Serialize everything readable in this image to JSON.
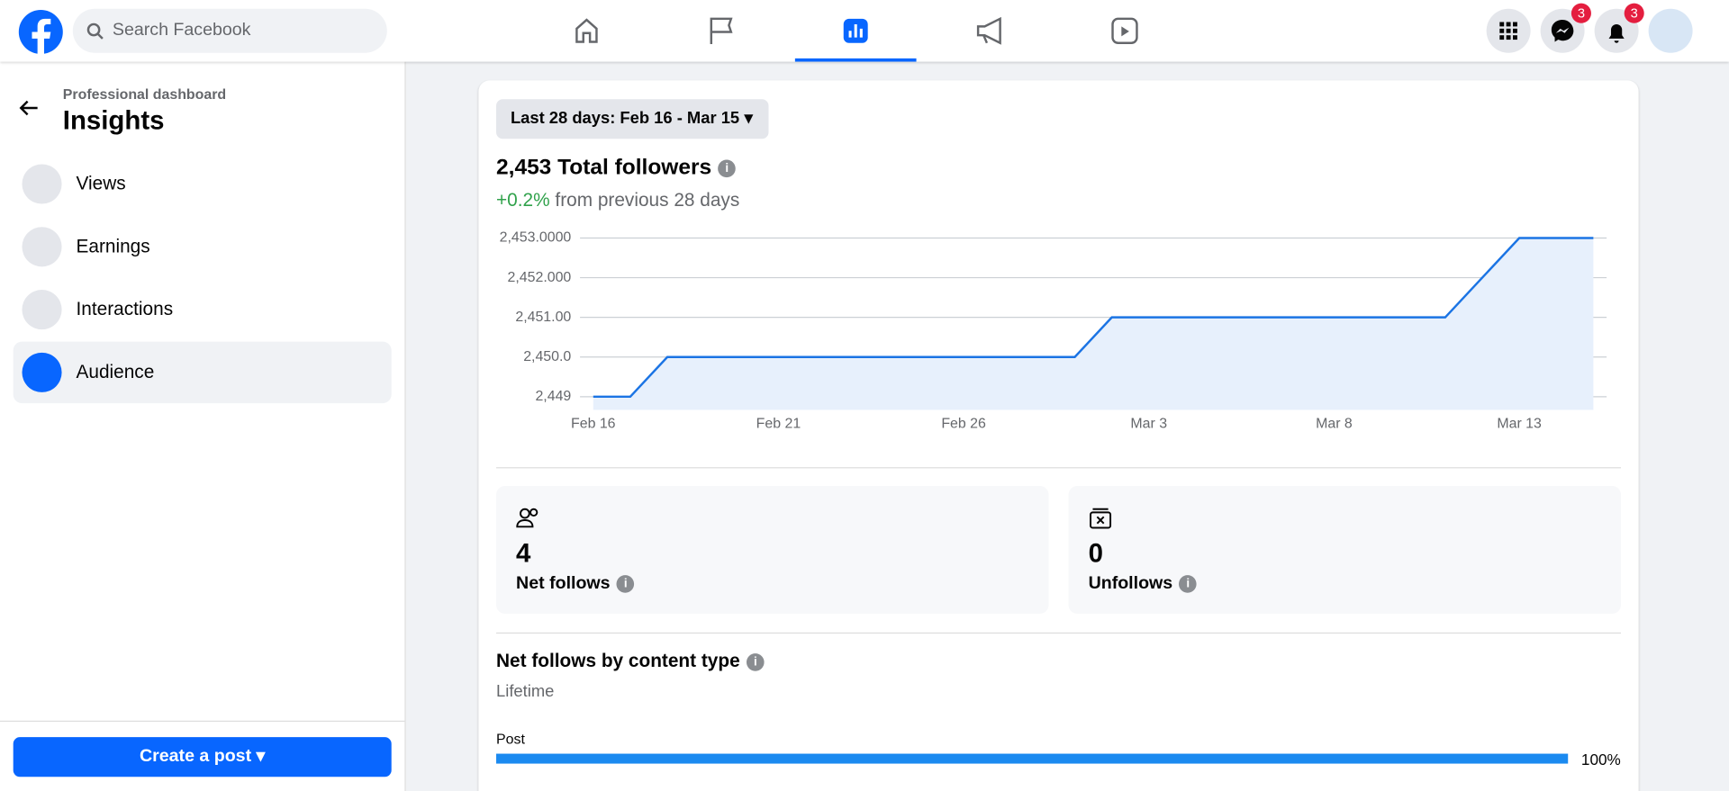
{
  "header": {
    "search_placeholder": "Search Facebook",
    "messenger_badge": "3",
    "notifications_badge": "3"
  },
  "sidebar": {
    "subtitle": "Professional dashboard",
    "title": "Insights",
    "items": [
      "Views",
      "Earnings",
      "Interactions",
      "Audience"
    ],
    "create_button": "Create a post"
  },
  "date_filter": "Last 28 days: Feb 16 - Mar 15",
  "summary": {
    "total": "2,453 Total followers",
    "change": "+0.2%",
    "change_text": "from previous 28 days"
  },
  "chart_data": {
    "type": "area",
    "color": "#1b74e4",
    "fill": "#e7f0fc",
    "grid": true,
    "categories": [
      "Feb 16",
      null,
      null,
      null,
      null,
      "Feb 21",
      null,
      null,
      null,
      null,
      "Feb 26",
      null,
      null,
      null,
      null,
      "Mar 3",
      null,
      null,
      null,
      null,
      "Mar 8",
      null,
      null,
      null,
      null,
      "Mar 13",
      null,
      null
    ],
    "values": [
      2449,
      2449,
      2450,
      2450,
      2450,
      2450,
      2450,
      2450,
      2450,
      2450,
      2450,
      2450,
      2450,
      2450,
      2451,
      2451,
      2451,
      2451,
      2451,
      2451,
      2451,
      2451,
      2451,
      2451,
      2452,
      2453,
      2453,
      2453
    ],
    "ylim": [
      2448.667,
      2453
    ],
    "yticks": [
      {
        "value": 2449,
        "label": "2,449"
      },
      {
        "value": 2450,
        "label": "2,450.0"
      },
      {
        "value": 2451,
        "label": "2,451.00"
      },
      {
        "value": 2452,
        "label": "2,452.000"
      },
      {
        "value": 2453,
        "label": "2,453.0000"
      }
    ]
  },
  "stats": [
    {
      "value": 4,
      "label": "Net follows"
    },
    {
      "value": 0,
      "label": "Unfollows"
    }
  ],
  "content_type": {
    "title": "Net follows by content type",
    "period": "Lifetime",
    "items": [
      {
        "name": "Post",
        "value": 100,
        "value_label": "100%"
      }
    ]
  }
}
